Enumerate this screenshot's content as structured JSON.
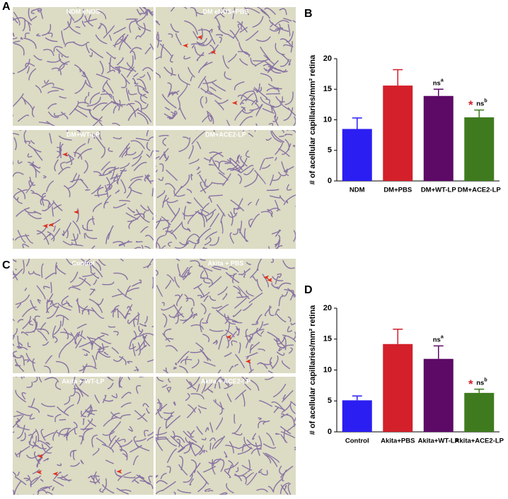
{
  "image_panels": [
    {
      "label": "A",
      "images": [
        "NDM eNOS",
        "DM eNOS+PBS",
        "DM+WT-LP",
        "DM+ACE2-LP"
      ]
    },
    {
      "label": "C",
      "images": [
        "Control",
        "Akita + PBS",
        "Akita + WT-LP",
        "Akita + ACE2-LP"
      ]
    }
  ],
  "chart_data": [
    {
      "type": "bar",
      "panel_label": "B",
      "ylabel": "# of acellular capillaries/mm² retina",
      "categories": [
        "NDM",
        "DM+PBS",
        "DM+WT-LP",
        "DM+ACE2-LP"
      ],
      "values": [
        8.5,
        15.6,
        13.9,
        10.4
      ],
      "errors": [
        1.8,
        2.6,
        1.1,
        1.2
      ],
      "colors": [
        "#2b1ef2",
        "#d3202a",
        "#5c0a66",
        "#3f7b1e"
      ],
      "annotations": [
        null,
        null,
        {
          "text": "ns",
          "sup": "a"
        },
        {
          "star": "*",
          "text": "ns",
          "sup": "b"
        }
      ],
      "ylim": [
        0,
        20
      ],
      "yticks": [
        0,
        5,
        10,
        15,
        20
      ]
    },
    {
      "type": "bar",
      "panel_label": "D",
      "ylabel": "# of acellular capillaries/mm² retina",
      "categories": [
        "Control",
        "Akita+PBS",
        "Akita+WT-LP",
        "Akita+ACE2-LP"
      ],
      "values": [
        5.1,
        14.2,
        11.8,
        6.3
      ],
      "errors": [
        0.7,
        2.4,
        2.1,
        0.6
      ],
      "colors": [
        "#2b1ef2",
        "#d3202a",
        "#5c0a66",
        "#3f7b1e"
      ],
      "annotations": [
        null,
        null,
        {
          "text": "ns",
          "sup": "a"
        },
        {
          "star": "*",
          "text": "ns",
          "sup": "b"
        }
      ],
      "ylim": [
        0,
        20
      ],
      "yticks": [
        0,
        5,
        10,
        15,
        20
      ]
    }
  ]
}
